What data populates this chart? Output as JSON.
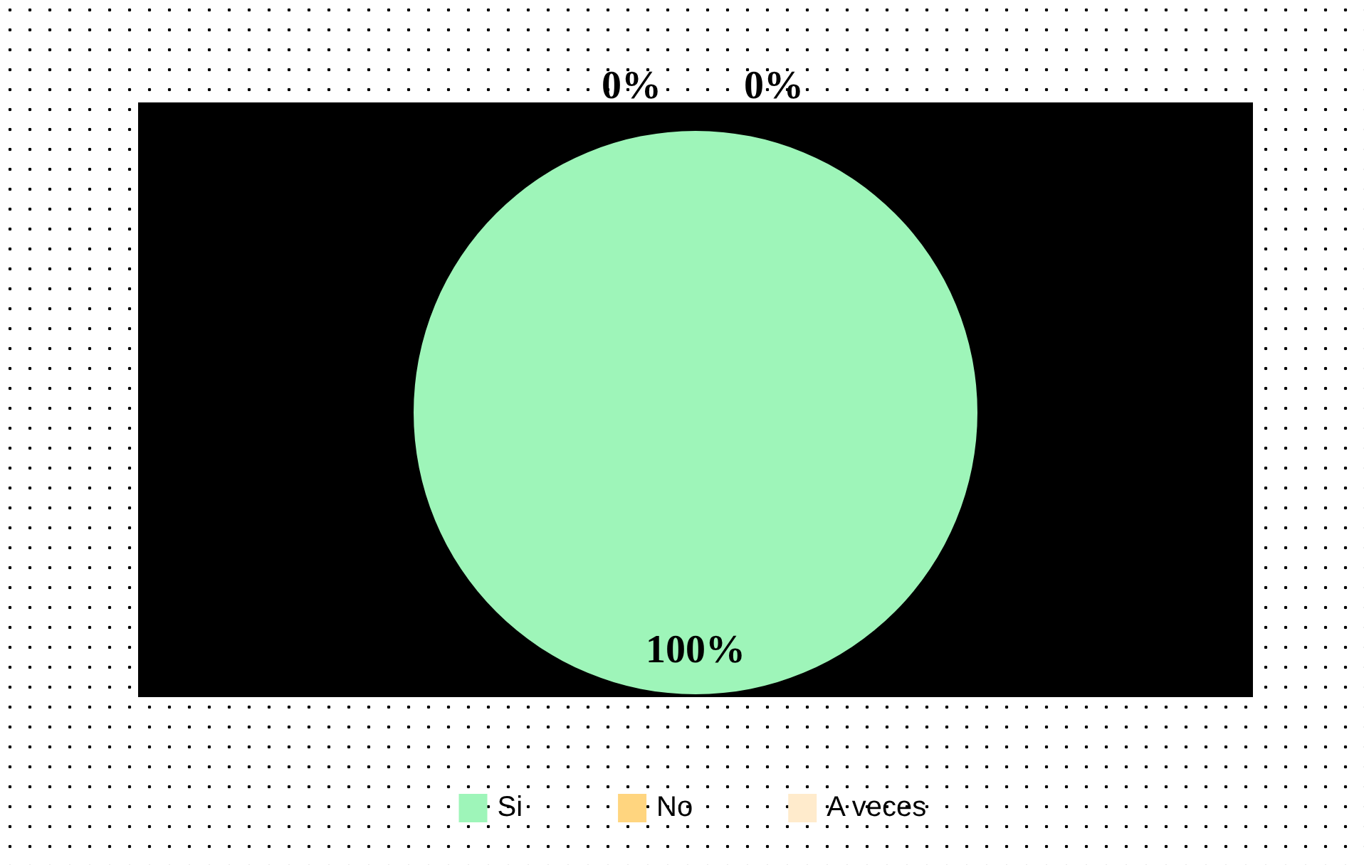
{
  "chart_data": {
    "type": "pie",
    "categories": [
      "Si",
      "No",
      "A veces"
    ],
    "values": [
      100,
      0,
      0
    ],
    "colors": [
      "#9ef5b9",
      "#ffd57f",
      "#ffebcc"
    ],
    "value_labels": [
      "100%",
      "0%",
      "0%"
    ],
    "legend": "bottom"
  }
}
